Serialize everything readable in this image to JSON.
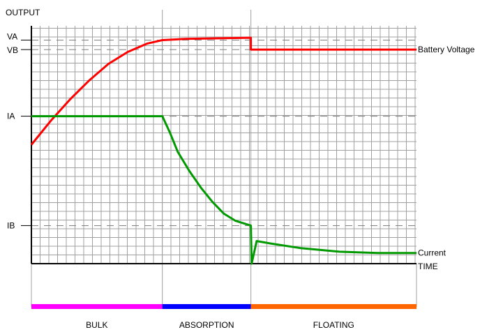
{
  "chart_data": {
    "type": "line",
    "ylabel": "OUTPUT",
    "xlabel": "TIME",
    "y_ticks": [
      {
        "label": "VA",
        "value": 0.94
      },
      {
        "label": "VB",
        "value": 0.9
      },
      {
        "label": "IA",
        "value": 0.62
      },
      {
        "label": "IB",
        "value": 0.16
      }
    ],
    "phase_boundaries": [
      0.34,
      0.57
    ],
    "phases": [
      {
        "name": "BULK",
        "start": 0,
        "end": 0.34,
        "color": "#ff00ff"
      },
      {
        "name": "ABSORPTION",
        "start": 0.34,
        "end": 0.57,
        "color": "#0000ff"
      },
      {
        "name": "FLOATING",
        "start": 0.57,
        "end": 1.0,
        "color": "#ff6600"
      }
    ],
    "series": [
      {
        "name": "Battery Voltage",
        "color": "#ff0000",
        "points": [
          [
            0,
            0.5
          ],
          [
            0.05,
            0.6
          ],
          [
            0.1,
            0.69
          ],
          [
            0.15,
            0.77
          ],
          [
            0.2,
            0.84
          ],
          [
            0.25,
            0.89
          ],
          [
            0.3,
            0.925
          ],
          [
            0.34,
            0.94
          ],
          [
            0.4,
            0.945
          ],
          [
            0.5,
            0.948
          ],
          [
            0.57,
            0.95
          ],
          [
            0.57,
            0.9
          ],
          [
            1.0,
            0.9
          ]
        ]
      },
      {
        "name": "Current",
        "color": "#009900",
        "points": [
          [
            0,
            0.62
          ],
          [
            0.34,
            0.62
          ],
          [
            0.36,
            0.55
          ],
          [
            0.38,
            0.47
          ],
          [
            0.41,
            0.39
          ],
          [
            0.44,
            0.32
          ],
          [
            0.47,
            0.26
          ],
          [
            0.5,
            0.21
          ],
          [
            0.53,
            0.18
          ],
          [
            0.57,
            0.16
          ],
          [
            0.572,
            0.0
          ],
          [
            0.585,
            0.095
          ],
          [
            0.62,
            0.085
          ],
          [
            0.7,
            0.065
          ],
          [
            0.8,
            0.05
          ],
          [
            0.9,
            0.045
          ],
          [
            1.0,
            0.045
          ]
        ]
      }
    ],
    "grid": true
  },
  "colors": {
    "grid": "#a0a0a0",
    "axis": "#000000",
    "dash": "#808080"
  }
}
